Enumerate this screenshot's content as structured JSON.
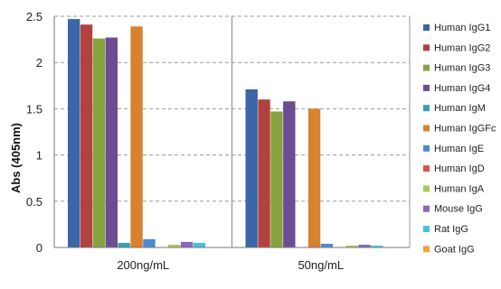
{
  "chart_data": {
    "type": "bar",
    "ylabel": "Abs (405nm)",
    "ylim": [
      0,
      2.5
    ],
    "yticks": [
      "0",
      "0.5",
      "1",
      "1.5",
      "2",
      "2.5"
    ],
    "grid": "horizontal dashed",
    "legend_position": "right",
    "categories": [
      "200ng/mL",
      "50ng/mL"
    ],
    "series": [
      {
        "name": "Human IgG1",
        "color": "#3b66a8",
        "values": [
          2.47,
          1.71
        ]
      },
      {
        "name": "Human IgG2",
        "color": "#b2423e",
        "values": [
          2.41,
          1.6
        ]
      },
      {
        "name": "Human IgG3",
        "color": "#87a33e",
        "values": [
          2.26,
          1.47
        ]
      },
      {
        "name": "Human IgG4",
        "color": "#6c4d94",
        "values": [
          2.27,
          1.58
        ]
      },
      {
        "name": "Human IgM",
        "color": "#3a9fb5",
        "values": [
          0.05,
          0.0
        ]
      },
      {
        "name": "Human IgGFc",
        "color": "#d8822f",
        "values": [
          2.39,
          1.5
        ]
      },
      {
        "name": "Human IgE",
        "color": "#4b8bd1",
        "values": [
          0.09,
          0.04
        ]
      },
      {
        "name": "Human IgD",
        "color": "#d9534f",
        "values": [
          0.0,
          0.0
        ]
      },
      {
        "name": "Human IgA",
        "color": "#a4cc55",
        "values": [
          0.03,
          0.02
        ]
      },
      {
        "name": "Mouse IgG",
        "color": "#8a67b8",
        "values": [
          0.06,
          0.03
        ]
      },
      {
        "name": "Rat IgG",
        "color": "#3fc4dc",
        "values": [
          0.05,
          0.02
        ]
      },
      {
        "name": "Goat IgG",
        "color": "#f4a03b",
        "values": [
          0.0,
          0.0
        ]
      }
    ]
  }
}
